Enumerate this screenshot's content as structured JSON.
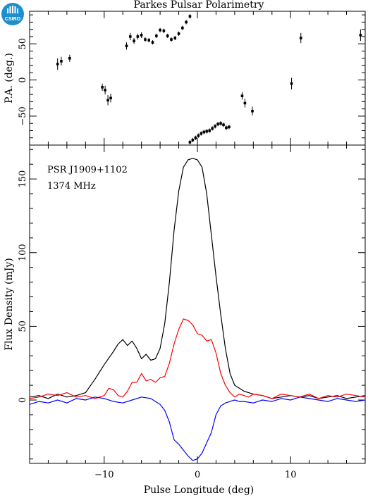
{
  "chart_data": [
    {
      "type": "scatter",
      "title": "Parkes Pulsar Polarimetry",
      "ylabel": "P.A. (deg.)",
      "xlim": [
        -18,
        18
      ],
      "ylim": [
        -90,
        95
      ],
      "yticks": [
        -50,
        0,
        50
      ],
      "logo_text": "CSIRO",
      "series": [
        {
          "x": [
            -15.0,
            -14.6,
            -13.7,
            -10.2,
            -9.9,
            -9.6,
            -9.3,
            -7.6,
            -7.2,
            -6.8,
            -6.4,
            -6.0,
            -5.6,
            -5.2,
            -4.8,
            -4.4,
            -4.0,
            -3.6,
            -3.2,
            -2.8,
            -2.4,
            -2.0,
            -1.6,
            -1.2,
            -0.8,
            4.8,
            5.1,
            5.9,
            10.1,
            11.1,
            17.5
          ],
          "y": [
            22,
            26,
            30,
            -10,
            -14,
            -28,
            -25,
            47,
            60,
            54,
            60,
            62,
            56,
            55,
            52,
            61,
            69,
            68,
            61,
            56,
            58,
            64,
            72,
            80,
            88,
            -22,
            -32,
            -43,
            -5,
            58,
            62
          ],
          "yerr": [
            8,
            6,
            5,
            5,
            6,
            7,
            6,
            5,
            5,
            4,
            4,
            4,
            3,
            3,
            3,
            3,
            3,
            3,
            3,
            3,
            3,
            3,
            3,
            3,
            3,
            5,
            6,
            6,
            8,
            7,
            8
          ]
        },
        {
          "x": [
            -0.8,
            -0.5,
            -0.2,
            0.1,
            0.4,
            0.7,
            1.0,
            1.3,
            1.6,
            1.9,
            2.2,
            2.5,
            2.8,
            3.1,
            3.4
          ],
          "y": [
            -86,
            -83,
            -80,
            -77,
            -74,
            -72,
            -71,
            -70,
            -67,
            -64,
            -61,
            -60,
            -62,
            -66,
            -65
          ],
          "yerr": [
            3,
            3,
            3,
            3,
            3,
            3,
            3,
            3,
            3,
            3,
            3,
            3,
            3,
            3,
            3
          ]
        }
      ]
    },
    {
      "type": "line",
      "xlabel": "Pulse Longitude (deg)",
      "ylabel": "Flux Density (mJy)",
      "xlim": [
        -18,
        18
      ],
      "ylim": [
        -43,
        173
      ],
      "xticks": [
        -10,
        0,
        10
      ],
      "yticks": [
        0,
        50,
        100,
        150
      ],
      "annotations": [
        "PSR J1909+1102",
        "1374 MHz"
      ],
      "series": [
        {
          "color": "#000000",
          "x": [
            -18,
            -17,
            -16,
            -15,
            -14,
            -13,
            -12,
            -11,
            -10,
            -9,
            -8.5,
            -8,
            -7.5,
            -7,
            -6.5,
            -6,
            -5.5,
            -5,
            -4.5,
            -4,
            -3.5,
            -3,
            -2.5,
            -2,
            -1.5,
            -1,
            -0.5,
            0,
            0.5,
            1,
            1.5,
            2,
            2.5,
            3,
            3.5,
            4,
            4.5,
            5,
            5.5,
            6,
            7,
            8,
            9,
            10,
            11,
            12,
            13,
            14,
            15,
            16,
            17,
            18
          ],
          "y": [
            2,
            3,
            1,
            4,
            2,
            3,
            5,
            14,
            24,
            33,
            38,
            41,
            37,
            40,
            35,
            28,
            31,
            27,
            28,
            35,
            52,
            80,
            115,
            142,
            158,
            163,
            164,
            163,
            158,
            140,
            112,
            84,
            58,
            35,
            18,
            10,
            8,
            6,
            5,
            4,
            3,
            1,
            2,
            3,
            2,
            3,
            1,
            2,
            3,
            1,
            2,
            3
          ]
        },
        {
          "color": "#ff0000",
          "x": [
            -18,
            -17,
            -16,
            -15,
            -14,
            -13,
            -12,
            -11,
            -10,
            -9.5,
            -9,
            -8.5,
            -8,
            -7.5,
            -7,
            -6.5,
            -6,
            -5.5,
            -5,
            -4.5,
            -4,
            -3.5,
            -3,
            -2.5,
            -2,
            -1.5,
            -1,
            -0.5,
            0,
            0.5,
            1,
            1.5,
            2,
            2.5,
            3,
            3.5,
            4,
            4.5,
            5,
            5.5,
            6,
            7,
            8,
            9,
            10,
            11,
            12,
            13,
            14,
            15,
            16,
            17,
            18
          ],
          "y": [
            1,
            2,
            4,
            3,
            5,
            2,
            3,
            1,
            3,
            8,
            7,
            3,
            2,
            6,
            12,
            12,
            18,
            13,
            14,
            12,
            15,
            16,
            25,
            38,
            48,
            55,
            54,
            51,
            45,
            44,
            40,
            41,
            32,
            18,
            10,
            5,
            2,
            4,
            3,
            2,
            4,
            3,
            1,
            4,
            3,
            2,
            4,
            1,
            3,
            2,
            4,
            3,
            2
          ]
        },
        {
          "color": "#0000ff",
          "x": [
            -18,
            -17,
            -16,
            -15,
            -14,
            -13,
            -12,
            -11,
            -10,
            -9,
            -8,
            -7,
            -6,
            -5,
            -4.5,
            -4,
            -3.5,
            -3,
            -2.5,
            -2,
            -1.5,
            -1,
            -0.5,
            0,
            0.5,
            1,
            1.5,
            2,
            2.5,
            3,
            3.5,
            4,
            4.5,
            5,
            6,
            7,
            8,
            9,
            10,
            11,
            12,
            13,
            14,
            15,
            16,
            17,
            18
          ],
          "y": [
            -3,
            -1,
            -2,
            0,
            -2,
            1,
            0,
            2,
            1,
            -1,
            -2,
            0,
            2,
            1,
            -1,
            -3,
            -7,
            -15,
            -27,
            -30,
            -34,
            -38,
            -41,
            -40,
            -36,
            -29,
            -22,
            -10,
            -4,
            -2,
            -1,
            0,
            -1,
            -1,
            -2,
            0,
            -1,
            1,
            0,
            2,
            1,
            0,
            -1,
            1,
            0,
            -1,
            0
          ]
        }
      ]
    }
  ]
}
